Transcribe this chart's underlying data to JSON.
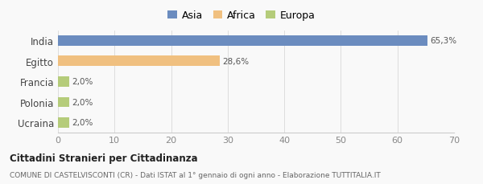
{
  "categories": [
    "India",
    "Egitto",
    "Francia",
    "Polonia",
    "Ucraina"
  ],
  "values": [
    65.3,
    28.6,
    2.0,
    2.0,
    2.0
  ],
  "labels": [
    "65,3%",
    "28,6%",
    "2,0%",
    "2,0%",
    "2,0%"
  ],
  "bar_colors": [
    "#6b8cbf",
    "#f0c080",
    "#b5cc7a",
    "#b5cc7a",
    "#b5cc7a"
  ],
  "legend": [
    {
      "label": "Asia",
      "color": "#6b8cbf"
    },
    {
      "label": "Africa",
      "color": "#f0c080"
    },
    {
      "label": "Europa",
      "color": "#b5cc7a"
    }
  ],
  "xlim": [
    0,
    70
  ],
  "xticks": [
    0,
    10,
    20,
    30,
    40,
    50,
    60,
    70
  ],
  "title_bold": "Cittadini Stranieri per Cittadinanza",
  "subtitle": "COMUNE DI CASTELVISCONTI (CR) - Dati ISTAT al 1° gennaio di ogni anno - Elaborazione TUTTITALIA.IT",
  "background_color": "#f9f9f9",
  "bar_height": 0.5
}
